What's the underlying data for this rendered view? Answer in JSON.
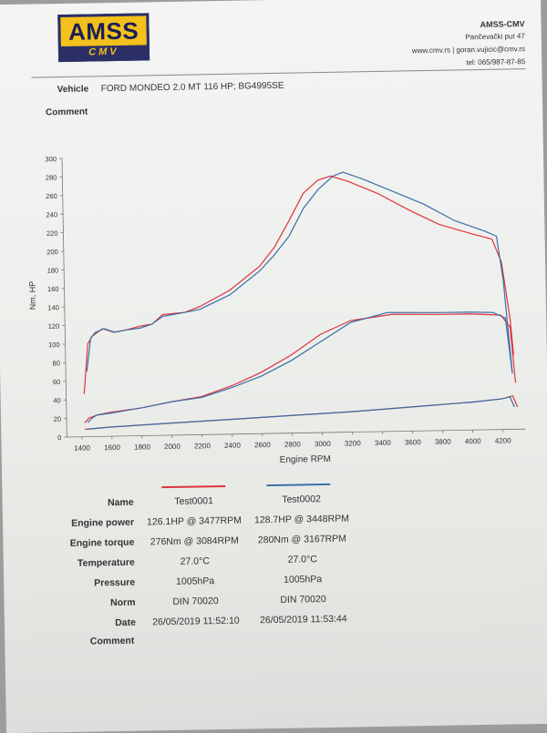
{
  "logo": {
    "top": "AMSS",
    "bottom": "CMV"
  },
  "company": {
    "name": "AMSS-CMV",
    "address": "Pančevački put 47",
    "web": "www.cmv.rs | goran.vujicic@cmv.rs",
    "phone": "tel: 065/987-87-85"
  },
  "vehicle": {
    "label": "Vehicle",
    "value": "FORD MONDEO 2.0 MT 116 HP; BG4995SE"
  },
  "comment_top": {
    "label": "Comment"
  },
  "colors": {
    "test1": "#e0323c",
    "test2": "#3a6fa8"
  },
  "chart_data": {
    "type": "line",
    "xlabel": "Engine RPM",
    "ylabel": "Nm, HP",
    "xlim": [
      1300,
      4350
    ],
    "ylim": [
      0,
      300
    ],
    "x_ticks": [
      1400,
      1600,
      1800,
      2000,
      2200,
      2400,
      2600,
      2800,
      3000,
      3200,
      3400,
      3600,
      3800,
      4000,
      4200
    ],
    "y_ticks": [
      0,
      20,
      40,
      60,
      80,
      100,
      120,
      140,
      160,
      180,
      200,
      220,
      240,
      260,
      280,
      300
    ],
    "series": [
      {
        "name": "Test0001",
        "curve": "torque",
        "color": "#e0323c",
        "x": [
          1420,
          1450,
          1480,
          1550,
          1620,
          1700,
          1800,
          1880,
          1950,
          2100,
          2200,
          2400,
          2600,
          2700,
          2800,
          2900,
          3000,
          3084,
          3200,
          3400,
          3600,
          3800,
          4000,
          4150,
          4210,
          4260,
          4280
        ],
        "y": [
          46,
          100,
          108,
          116,
          112,
          114,
          118,
          120,
          130,
          132,
          138,
          155,
          180,
          200,
          228,
          258,
          272,
          276,
          270,
          256,
          238,
          222,
          212,
          205,
          180,
          120,
          80
        ]
      },
      {
        "name": "Test0002",
        "curve": "torque",
        "color": "#3a6fa8",
        "x": [
          1440,
          1470,
          1500,
          1560,
          1630,
          1700,
          1800,
          1880,
          1950,
          2100,
          2200,
          2400,
          2600,
          2700,
          2800,
          2900,
          3000,
          3100,
          3167,
          3300,
          3500,
          3700,
          3900,
          4100,
          4180,
          4220,
          4250,
          4270
        ],
        "y": [
          70,
          106,
          112,
          116,
          112,
          114,
          116,
          120,
          128,
          132,
          135,
          150,
          175,
          192,
          212,
          242,
          262,
          276,
          280,
          272,
          258,
          244,
          226,
          214,
          208,
          160,
          100,
          60
        ]
      },
      {
        "name": "Test0001",
        "curve": "power",
        "color": "#e0323c",
        "x": [
          1420,
          1450,
          1500,
          1600,
          1800,
          2000,
          2200,
          2400,
          2600,
          2800,
          3000,
          3200,
          3477,
          3800,
          4000,
          4200,
          4260,
          4290
        ],
        "y": [
          15,
          20,
          23,
          26,
          30,
          36,
          41,
          52,
          66,
          84,
          106,
          120,
          126,
          125,
          125,
          123,
          110,
          50
        ]
      },
      {
        "name": "Test0002",
        "curve": "power",
        "color": "#3a6fa8",
        "x": [
          1440,
          1470,
          1500,
          1600,
          1800,
          2000,
          2200,
          2400,
          2600,
          2800,
          3000,
          3200,
          3448,
          3800,
          4000,
          4150,
          4230,
          4270
        ],
        "y": [
          15,
          20,
          23,
          25,
          30,
          36,
          40,
          50,
          62,
          78,
          98,
          118,
          128,
          127,
          127,
          126,
          120,
          60
        ]
      },
      {
        "name": "Test0001",
        "curve": "loss",
        "color": "#e0323c",
        "x": [
          1420,
          1600,
          2000,
          2400,
          2800,
          3200,
          3600,
          4000,
          4200,
          4270,
          4300
        ],
        "y": [
          8,
          10,
          13,
          16,
          19,
          22,
          26,
          30,
          33,
          36,
          24
        ]
      },
      {
        "name": "Test0002",
        "curve": "loss",
        "color": "#3a6fa8",
        "x": [
          1440,
          1600,
          2000,
          2400,
          2800,
          3200,
          3600,
          4000,
          4200,
          4250,
          4280
        ],
        "y": [
          8,
          10,
          13,
          16,
          19,
          22,
          26,
          30,
          33,
          35,
          24
        ]
      }
    ]
  },
  "results": {
    "rows": [
      {
        "label": "Name",
        "v1": "Test0001",
        "v2": "Test0002"
      },
      {
        "label": "Engine power",
        "v1": "126.1HP @  3477RPM",
        "v2": "128.7HP @  3448RPM"
      },
      {
        "label": "Engine torque",
        "v1": "276Nm @ 3084RPM",
        "v2": "280Nm @ 3167RPM"
      },
      {
        "label": "Temperature",
        "v1": "27.0°C",
        "v2": "27.0°C"
      },
      {
        "label": "Pressure",
        "v1": "1005hPa",
        "v2": "1005hPa"
      },
      {
        "label": "Norm",
        "v1": "DIN 70020",
        "v2": "DIN 70020"
      },
      {
        "label": "Date",
        "v1": "26/05/2019 11:52:10",
        "v2": "26/05/2019 11:53:44"
      }
    ],
    "comment_label": "Comment"
  }
}
